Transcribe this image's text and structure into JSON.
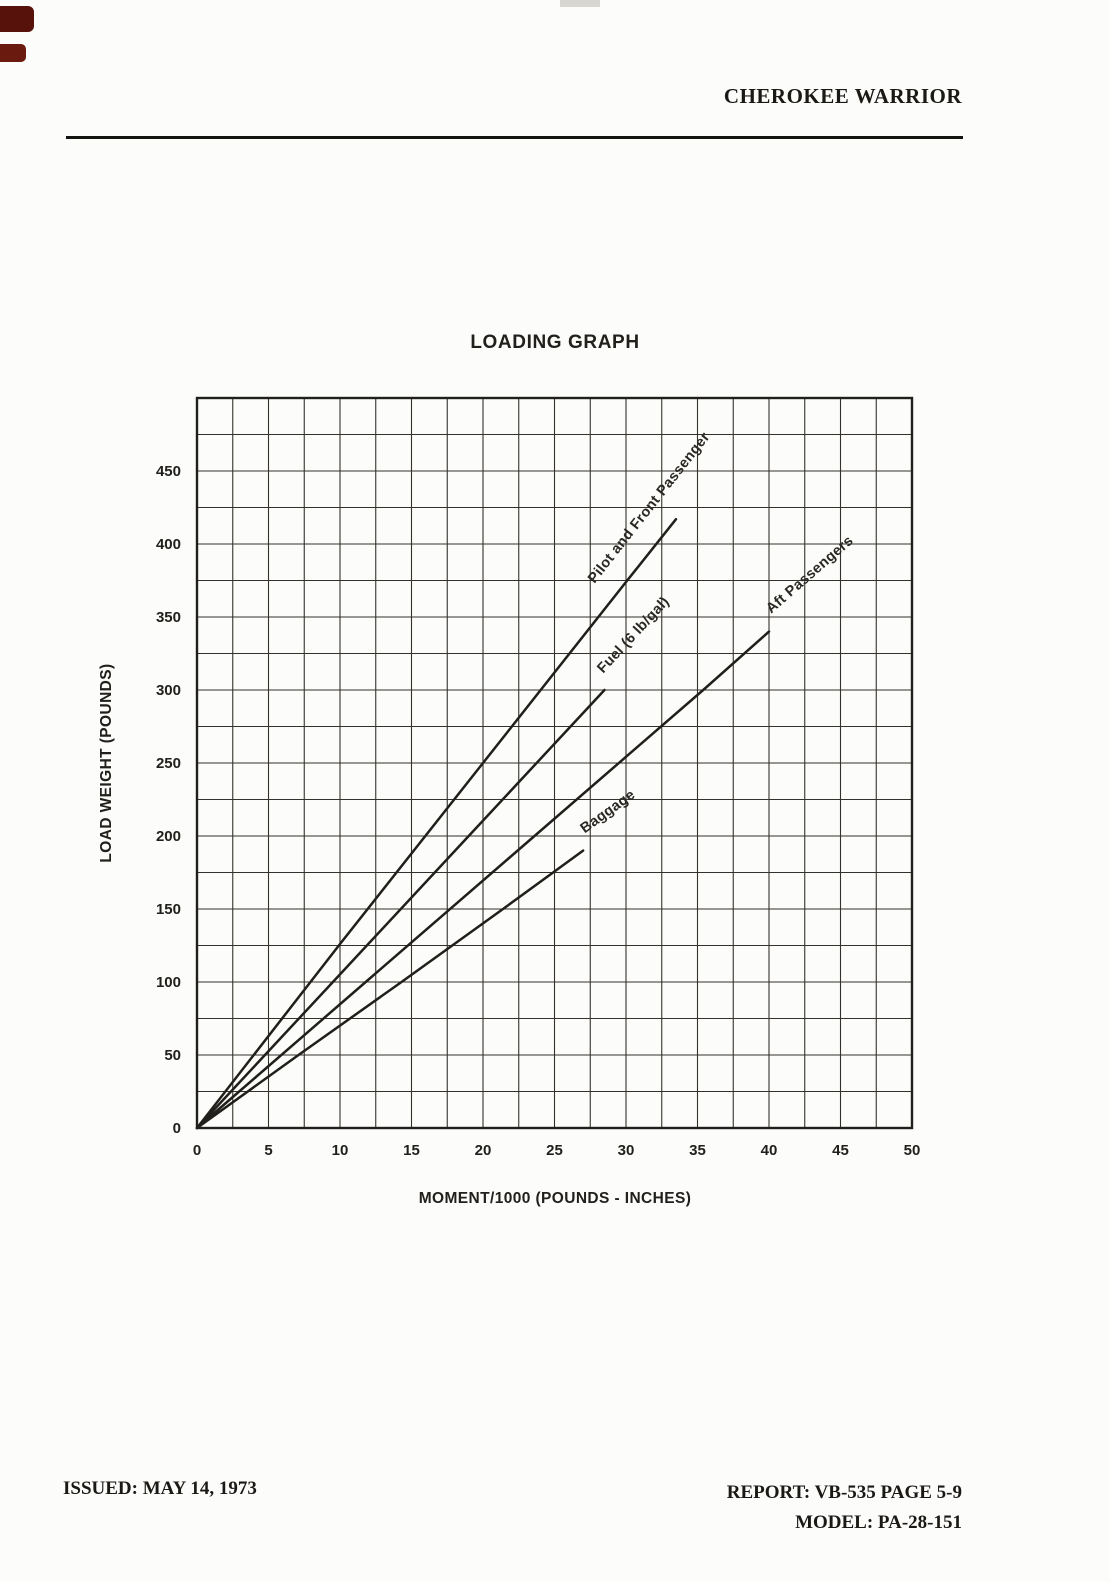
{
  "header": {
    "title": "CHEROKEE WARRIOR"
  },
  "footer": {
    "issued": "ISSUED: MAY 14, 1973",
    "report": "REPORT: VB-535 PAGE 5-9",
    "model": "MODEL: PA-28-151"
  },
  "chart_data": {
    "type": "line",
    "title": "LOADING GRAPH",
    "xlabel": "MOMENT/1000 (POUNDS - INCHES)",
    "ylabel": "LOAD WEIGHT (POUNDS)",
    "xlim": [
      0,
      50
    ],
    "ylim": [
      0,
      500
    ],
    "x_major_ticks": [
      0,
      5,
      10,
      15,
      20,
      25,
      30,
      35,
      40,
      45,
      50
    ],
    "y_major_ticks": [
      0,
      50,
      100,
      150,
      200,
      250,
      300,
      350,
      400,
      450
    ],
    "x_grid_step": 2.5,
    "y_grid_step": 25,
    "grid": true,
    "legend_position": "labels-on-lines",
    "series": [
      {
        "name": "Pilot and Front Passenger",
        "points": [
          [
            0,
            0
          ],
          [
            10,
            126
          ],
          [
            20,
            250
          ],
          [
            30,
            374
          ],
          [
            33.5,
            417
          ]
        ]
      },
      {
        "name": "Fuel (6 lb/gal)",
        "points": [
          [
            0,
            0
          ],
          [
            9.5,
            100
          ],
          [
            19,
            200
          ],
          [
            28.5,
            300
          ]
        ]
      },
      {
        "name": "Aft Passengers",
        "points": [
          [
            0,
            0
          ],
          [
            11.8,
            100
          ],
          [
            23.6,
            200
          ],
          [
            35.4,
            300
          ],
          [
            40,
            340
          ]
        ]
      },
      {
        "name": "Baggage",
        "points": [
          [
            0,
            0
          ],
          [
            7.1,
            50
          ],
          [
            14.3,
            100
          ],
          [
            21.4,
            150
          ],
          [
            27,
            190
          ]
        ]
      }
    ]
  }
}
